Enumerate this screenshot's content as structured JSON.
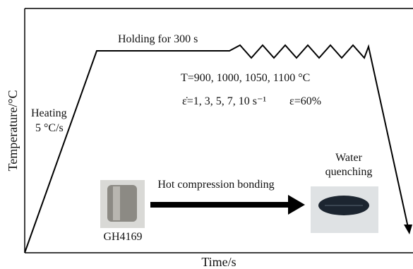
{
  "title": "Holding for 300 s",
  "parameters": {
    "temperature": "T=900, 1000, 1050, 1100 °C",
    "strain_rate": "ε̇=1, 3, 5, 7, 10 s⁻¹",
    "strain": "ε=60%"
  },
  "heating": {
    "label": "Heating",
    "rate": "5 °C/s"
  },
  "quenching": {
    "line1": "Water",
    "line2": "quenching"
  },
  "process": "Hot compression bonding",
  "material": "GH4169",
  "axes": {
    "y_label": "Temperature/°C",
    "x_label": "Time/s"
  }
}
